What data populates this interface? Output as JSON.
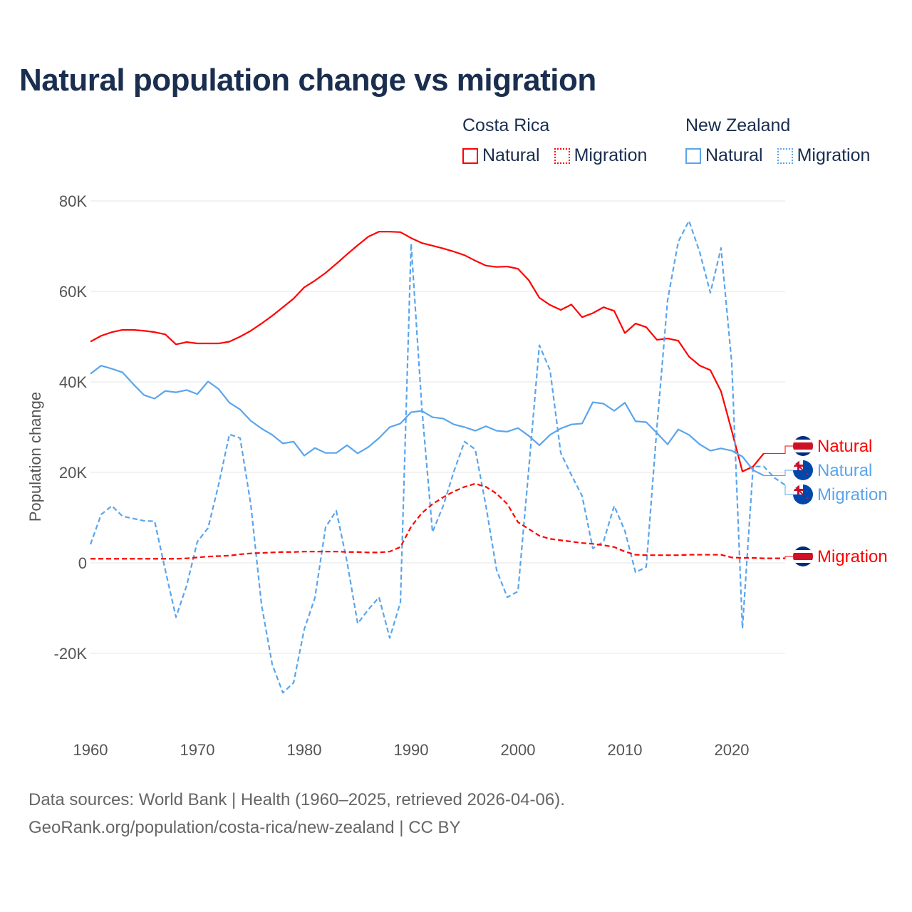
{
  "chart_data": {
    "type": "line",
    "title": "Natural population change vs migration",
    "xlabel": "",
    "ylabel": "Population change",
    "xlim": [
      1960,
      2025
    ],
    "ylim": [
      -30000,
      80000
    ],
    "yticks": [
      {
        "v": 80000,
        "label": "80K"
      },
      {
        "v": 60000,
        "label": "60K"
      },
      {
        "v": 40000,
        "label": "40K"
      },
      {
        "v": 20000,
        "label": "20K"
      },
      {
        "v": 0,
        "label": "0"
      },
      {
        "v": -20000,
        "label": "-20K"
      }
    ],
    "xticks": [
      1960,
      1970,
      1980,
      1990,
      2000,
      2010,
      2020
    ],
    "grid": true,
    "legend": {
      "placement": "top-right",
      "groups": [
        {
          "name": "Costa Rica",
          "items": [
            "Natural",
            "Migration"
          ]
        },
        {
          "name": "New Zealand",
          "items": [
            "Natural",
            "Migration"
          ]
        }
      ]
    },
    "series": [
      {
        "name": "Costa Rica Natural",
        "label": "Natural",
        "flag": "cr",
        "color": "#ff0000",
        "dash": false,
        "start": 1960,
        "values": [
          48900,
          50200,
          51000,
          51500,
          51500,
          51300,
          51000,
          50500,
          48300,
          48800,
          48500,
          48500,
          48500,
          48900,
          50000,
          51300,
          52900,
          54600,
          56500,
          58400,
          60900,
          62400,
          64100,
          66100,
          68200,
          70200,
          72100,
          73200,
          73200,
          73100,
          71800,
          70700,
          70100,
          69500,
          68800,
          68000,
          66800,
          65700,
          65400,
          65500,
          65000,
          62500,
          58600,
          57000,
          55900,
          57100,
          54300,
          55200,
          56500,
          55700,
          50800,
          52900,
          52100,
          49300,
          49600,
          49100,
          45600,
          43600,
          42600,
          37900,
          29200,
          20200,
          21300,
          24200
        ]
      },
      {
        "name": "New Zealand Natural",
        "label": "Natural",
        "flag": "nz",
        "color": "#5aa5ec",
        "dash": false,
        "start": 1960,
        "values": [
          41800,
          43600,
          42900,
          42100,
          39500,
          37100,
          36300,
          38000,
          37700,
          38200,
          37300,
          40100,
          38400,
          35400,
          33900,
          31400,
          29700,
          28300,
          26400,
          26800,
          23700,
          25400,
          24300,
          24300,
          26000,
          24200,
          25600,
          27600,
          30000,
          30800,
          33300,
          33600,
          32200,
          31900,
          30600,
          30000,
          29200,
          30200,
          29200,
          29000,
          29800,
          28100,
          26000,
          28300,
          29700,
          30600,
          30800,
          35500,
          35200,
          33600,
          35400,
          31300,
          31100,
          28700,
          26200,
          29500,
          28300,
          26200,
          24800,
          25300,
          24800,
          23500,
          20500,
          19300
        ]
      },
      {
        "name": "New Zealand Migration",
        "label": "Migration",
        "flag": "nz",
        "color": "#5aa5ec",
        "dash": true,
        "start": 1960,
        "values": [
          4100,
          10700,
          12600,
          10300,
          9800,
          9300,
          9200,
          -1600,
          -12000,
          -5000,
          4700,
          7700,
          17400,
          28400,
          27600,
          12900,
          -9200,
          -22400,
          -28700,
          -26500,
          -14700,
          -7700,
          7900,
          11500,
          300,
          -13400,
          -10300,
          -7600,
          -16600,
          -8700,
          70600,
          34400,
          6800,
          12600,
          20200,
          26800,
          25100,
          12600,
          -1600,
          -7600,
          -6300,
          20500,
          48100,
          42600,
          24300,
          19400,
          14800,
          3200,
          4700,
          12600,
          7100,
          -2100,
          -900,
          30000,
          58100,
          71000,
          75600,
          68700,
          59700,
          69600,
          44200,
          -14500,
          21300,
          21300,
          18800,
          17200
        ]
      },
      {
        "name": "Costa Rica Migration",
        "label": "Migration",
        "flag": "cr",
        "color": "#ff0000",
        "dash": true,
        "start": 1960,
        "values": [
          900,
          900,
          900,
          900,
          900,
          900,
          900,
          900,
          900,
          1000,
          1200,
          1400,
          1500,
          1600,
          1900,
          2100,
          2200,
          2300,
          2400,
          2400,
          2500,
          2500,
          2500,
          2500,
          2400,
          2400,
          2300,
          2300,
          2500,
          3500,
          8000,
          11000,
          13000,
          14500,
          15800,
          16800,
          17500,
          16800,
          15300,
          13000,
          9000,
          7500,
          6000,
          5300,
          5000,
          4700,
          4400,
          4200,
          3900,
          3500,
          2500,
          1800,
          1700,
          1700,
          1700,
          1700,
          1800,
          1800,
          1800,
          1800,
          1200,
          1100,
          1100,
          1000,
          1000,
          1000
        ]
      }
    ]
  },
  "footer": {
    "line1": "Data sources: World Bank | Health (1960–2025, retrieved 2026-04-06).",
    "line2": "GeoRank.org/population/costa-rica/new-zealand | CC BY"
  }
}
